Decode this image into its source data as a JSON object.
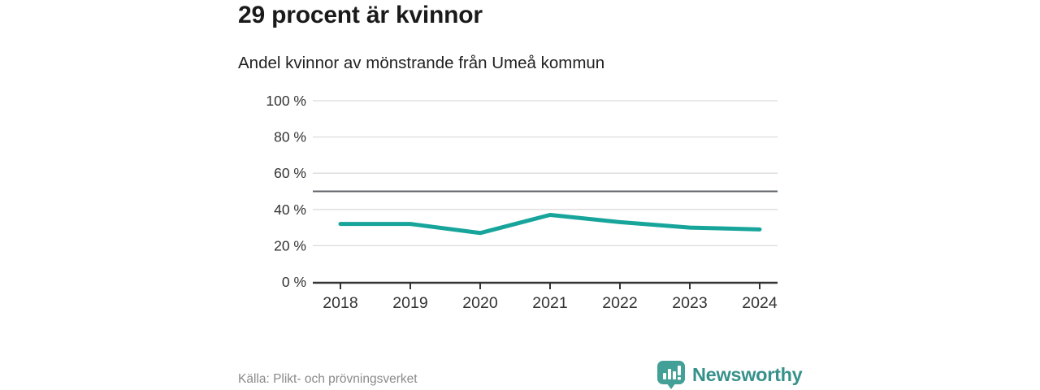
{
  "header": {
    "title": "29 procent är kvinnor",
    "subtitle": "Andel kvinnor av mönstrande från Umeå kommun"
  },
  "chart_data": {
    "type": "line",
    "title": "29 procent är kvinnor",
    "subtitle": "Andel kvinnor av mönstrande från Umeå kommun",
    "categories": [
      "2018",
      "2019",
      "2020",
      "2021",
      "2022",
      "2023",
      "2024"
    ],
    "series": [
      {
        "name": "Andel kvinnor av mönstrande",
        "values": [
          32,
          32,
          27,
          37,
          33,
          30,
          29
        ]
      }
    ],
    "xlabel": "",
    "ylabel": "",
    "ylim": [
      0,
      100
    ],
    "yticks": [
      0,
      20,
      40,
      60,
      80,
      100
    ],
    "ytick_labels": [
      "0 %",
      "20 %",
      "40 %",
      "60 %",
      "80 %",
      "100 %"
    ],
    "reference_line": {
      "value": 50
    },
    "grid": "horizontal",
    "legend": "none"
  },
  "footer": {
    "source": "Källa: Plikt- och prövningsverket",
    "brand": "Newsworthy"
  },
  "colors": {
    "line": "#17a59b",
    "grid": "#dcdcdc",
    "axis": "#333333",
    "reference": "#5f6368",
    "tick_text": "#333333",
    "source_text": "#8a8a8a",
    "brand_teal": "#37918b",
    "logo_fill": "#43a097"
  }
}
